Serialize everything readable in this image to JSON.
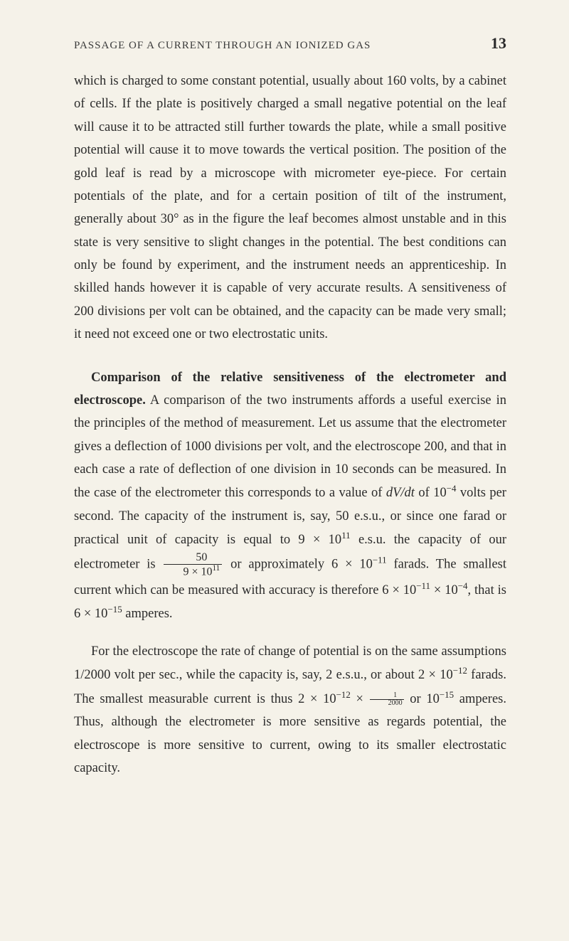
{
  "page": {
    "header_title": "PASSAGE OF A CURRENT THROUGH AN IONIZED GAS",
    "page_number": "13",
    "background_color": "#f5f2e9",
    "text_color": "#2a2a2a",
    "font_family": "Georgia serif",
    "body_fontsize": 18.5,
    "header_fontsize": 15,
    "pagenum_fontsize": 22,
    "line_height": 1.75
  },
  "para1": {
    "t1": "which is charged to some constant potential, usually about 160 volts, by a cabinet of cells. If the plate is positively charged a small negative potential on the leaf will cause it to be attracted still further towards the plate, while a small positive potential will cause it to move towards the vertical position. The position of the gold leaf is read by a microscope with micrometer eye-piece. For certain potentials of the plate, and for a certain position of tilt of the instrument, generally about 30° as in the figure the leaf becomes almost unstable and in this state is very sensitive to slight changes in the potential. The best conditions can only be found by experiment, and the instrument needs an apprenticeship. In skilled hands however it is capable of very accurate results. A sensitiveness of 200 divisions per volt can be obtained, and the capacity can be made very small; it need not exceed one or two electrostatic units."
  },
  "para2": {
    "lead": "Comparison of the relative sensitiveness of the electrometer and electroscope.",
    "t1": " A comparison of the two instruments affords a useful exercise in the principles of the method of measurement. Let us assume that the electrometer gives a deflection of 1000 divisions per volt, and the electroscope 200, and that in each case a rate of deflection of one division in 10 seconds can be measured. In the case of the electrometer this corresponds to a value of ",
    "dvdt": "dV/dt",
    "t2": " of 10",
    "exp1": "−4",
    "t3": " volts per second. The capacity of the instrument is, say, 50 e.s.u., or since one farad or practical unit of capacity is equal to 9 × 10",
    "exp2": "11",
    "t4": " e.s.u. the capacity of our electrometer is ",
    "frac_num": "50",
    "frac_den_a": "9 × 10",
    "frac_den_exp": "11",
    "t5": " or approximately 6 × 10",
    "exp3": "−11",
    "t6": " farads. The smallest current which can be measured with accuracy is therefore 6 × 10",
    "exp4": "−11",
    "t7": " × 10",
    "exp5": "−4",
    "t8": ", that is 6 × 10",
    "exp6": "−15",
    "t9": " amperes."
  },
  "para3": {
    "t1": "For the electroscope the rate of change of potential is on the same assumptions 1/2000 volt per sec., while the capacity is, say, 2 e.s.u., or about 2 × 10",
    "exp1": "−12",
    "t2": " farads. The smallest measurable current is thus 2 × 10",
    "exp2": "−12",
    "t3": " × ",
    "sf_num": "1",
    "sf_den": "2000",
    "t4": " or 10",
    "exp3": "−15",
    "t5": " amperes. Thus, although the electrometer is more sensitive as regards potential, the electroscope is more sensitive to current, owing to its smaller electrostatic capacity."
  }
}
